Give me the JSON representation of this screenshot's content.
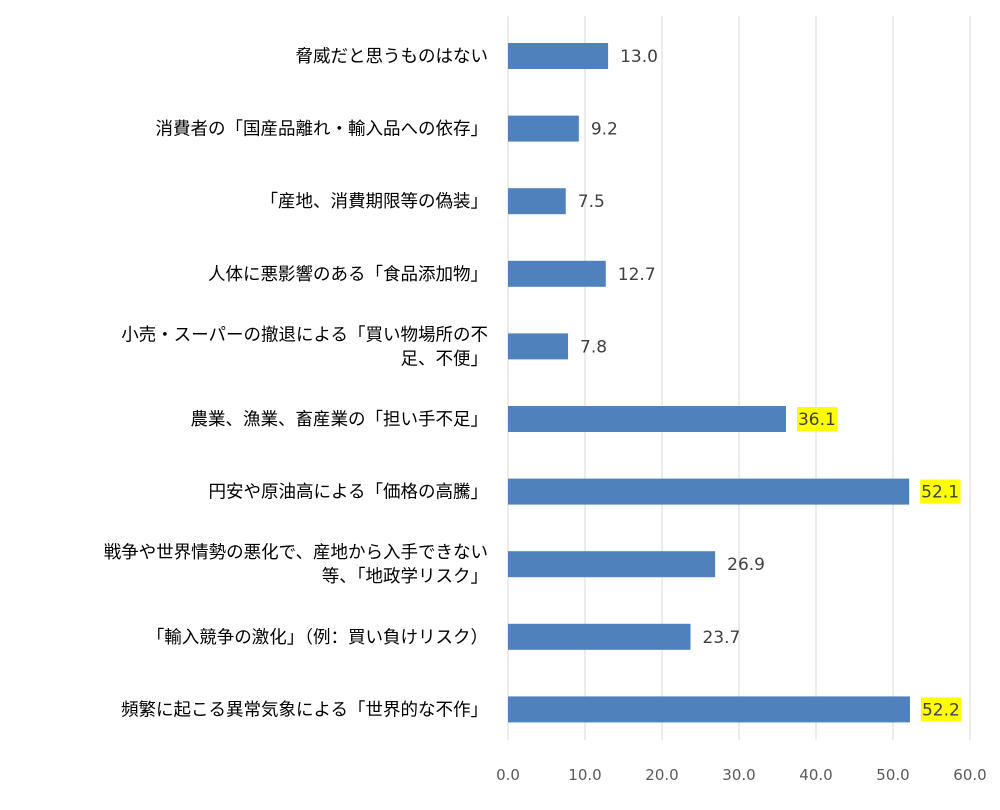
{
  "chart_data": {
    "type": "bar",
    "orientation": "horizontal",
    "categories": [
      [
        "脅威だと思うものはない"
      ],
      [
        "消費者の「国産品離れ・輸入品への依存」"
      ],
      [
        "「産地、消費期限等の偽装」"
      ],
      [
        "人体に悪影響のある「食品添加物」"
      ],
      [
        "小売・スーパーの撤退による「買い物場所の不",
        "足、不便」"
      ],
      [
        "農業、漁業、畜産業の「担い手不足」"
      ],
      [
        "円安や原油高による「価格の高騰」"
      ],
      [
        "戦争や世界情勢の悪化で、産地から入手できない",
        "等、「地政学リスク」"
      ],
      [
        "「輸入競争の激化」（例：買い負けリスク）"
      ],
      [
        "頻繁に起こる異常気象による「世界的な不作」"
      ]
    ],
    "values": [
      13.0,
      9.2,
      7.5,
      12.7,
      7.8,
      36.1,
      52.1,
      26.9,
      23.7,
      52.2
    ],
    "value_labels": [
      "13.0",
      "9.2",
      "7.5",
      "12.7",
      "7.8",
      "36.1",
      "52.1",
      "26.9",
      "23.7",
      "52.2"
    ],
    "highlighted": [
      false,
      false,
      false,
      false,
      false,
      true,
      true,
      false,
      false,
      true
    ],
    "xlim": [
      0,
      60
    ],
    "xticks": [
      0,
      10,
      20,
      30,
      40,
      50,
      60
    ],
    "xtick_labels": [
      "0.0",
      "10.0",
      "20.0",
      "30.0",
      "40.0",
      "50.0",
      "60.0"
    ],
    "grid": true,
    "bar_color": "#4f81bd",
    "highlight_color": "#ffff00",
    "grid_color": "#d9d9d9",
    "title": "",
    "xlabel": "",
    "ylabel": ""
  }
}
